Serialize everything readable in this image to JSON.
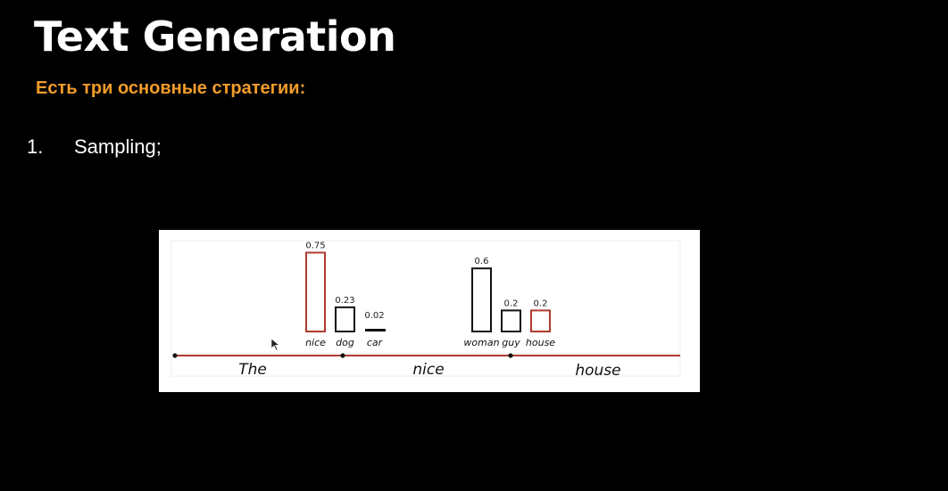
{
  "slide": {
    "title": "Text Generation",
    "subtitle": "Есть три основные стратегии:",
    "list": [
      {
        "number": "1.",
        "text": "Sampling;"
      }
    ]
  },
  "colors": {
    "background": "#000000",
    "title": "#ffffff",
    "subtitle_accent": "#f39c2a",
    "chosen_path": "#b03a2e",
    "unchosen_bar": "#111111"
  },
  "diagram": {
    "steps": [
      {
        "word": "The"
      },
      {
        "word": "nice"
      },
      {
        "word": "house"
      }
    ],
    "candidate_groups": [
      {
        "from_step": "The",
        "candidates": [
          {
            "word": "nice",
            "probability": 0.75,
            "prob_label": "0.75",
            "chosen": true
          },
          {
            "word": "dog",
            "probability": 0.23,
            "prob_label": "0.23",
            "chosen": false
          },
          {
            "word": "car",
            "probability": 0.02,
            "prob_label": "0.02",
            "chosen": false
          }
        ]
      },
      {
        "from_step": "nice",
        "candidates": [
          {
            "word": "woman",
            "probability": 0.6,
            "prob_label": "0.6",
            "chosen": false
          },
          {
            "word": "guy",
            "probability": 0.2,
            "prob_label": "0.2",
            "chosen": false
          },
          {
            "word": "house",
            "probability": 0.2,
            "prob_label": "0.2",
            "chosen": true
          }
        ]
      }
    ]
  }
}
